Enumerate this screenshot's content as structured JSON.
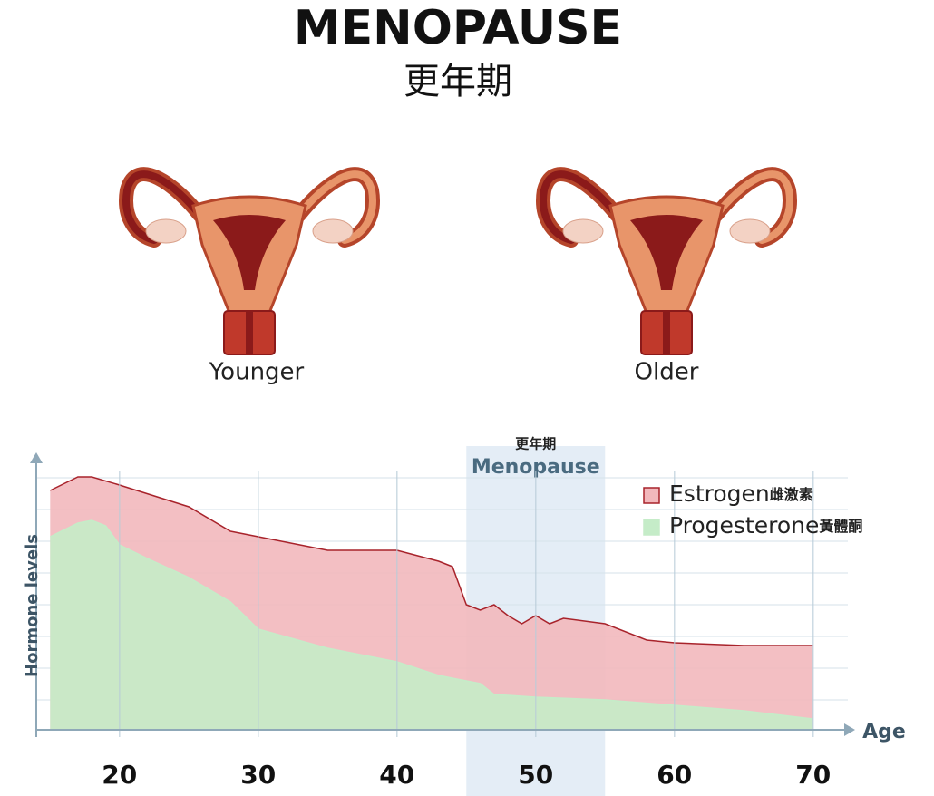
{
  "header": {
    "title": "MENOPAUSE",
    "subtitle": "更年期"
  },
  "illustrations": [
    {
      "label": "Younger"
    },
    {
      "label": "Older"
    }
  ],
  "chart_data": {
    "type": "area",
    "x_label": "Age",
    "y_label": "Hormone levels",
    "xlim": [
      14,
      72.5
    ],
    "ylim": [
      0,
      100
    ],
    "xticks": [
      20,
      30,
      40,
      50,
      60,
      70
    ],
    "highlight": {
      "label": "Menopause",
      "label_zh": "更年期",
      "range": [
        45,
        55
      ],
      "color": "#dde8f4"
    },
    "series": [
      {
        "name": "Estrogen",
        "name_zh": "雌激素",
        "color": "#f2b8bc",
        "line_color": "#a8232b",
        "x": [
          15,
          17,
          18,
          20,
          25,
          28,
          30,
          35,
          40,
          43,
          44,
          45,
          46,
          47,
          48,
          49,
          50,
          51,
          52,
          55,
          58,
          60,
          65,
          70
        ],
        "values": [
          88,
          93,
          93,
          90,
          82,
          73,
          71,
          66,
          66,
          62,
          60,
          46,
          44,
          46,
          42,
          39,
          42,
          39,
          41,
          39,
          33,
          32,
          31,
          31
        ]
      },
      {
        "name": "Progesterone",
        "name_zh": "黃體酮",
        "color": "#c5ecc8",
        "line_color": "#c5ecc8",
        "x": [
          15,
          17,
          18,
          19,
          20,
          22,
          25,
          28,
          30,
          35,
          40,
          43,
          45,
          46,
          47,
          50,
          55,
          60,
          65,
          70
        ],
        "values": [
          71,
          76,
          77,
          75,
          68,
          63,
          56,
          47,
          37,
          30,
          25,
          20,
          18,
          17,
          13,
          12,
          11,
          9,
          7,
          4
        ]
      }
    ]
  }
}
